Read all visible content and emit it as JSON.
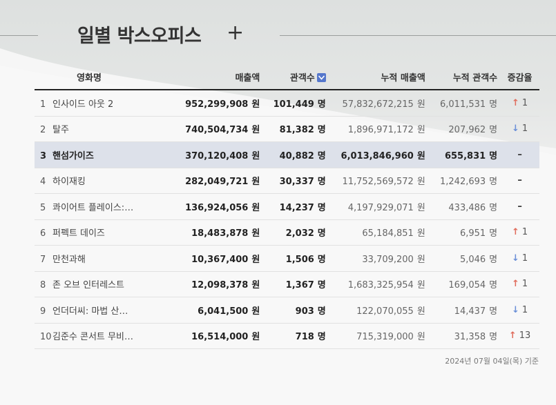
{
  "page": {
    "title": "일별 박스오피스",
    "plus_symbol": "+"
  },
  "columns": {
    "title": "영화명",
    "sales": "매출액",
    "audience": "관객수",
    "cum_sales": "누적 매출액",
    "cum_audience": "누적 관객수",
    "change": "증감율"
  },
  "units": {
    "won": "원",
    "people": "명"
  },
  "rows": [
    {
      "rank": "1",
      "title": "인사이드 아웃 2",
      "sales": "952,299,908",
      "audience": "101,449",
      "cum_sales": "57,832,672,215",
      "cum_audience": "6,011,531",
      "change_dir": "up",
      "change": "1"
    },
    {
      "rank": "2",
      "title": "탈주",
      "sales": "740,504,734",
      "audience": "81,382",
      "cum_sales": "1,896,971,172",
      "cum_audience": "207,962",
      "change_dir": "down",
      "change": "1"
    },
    {
      "rank": "3",
      "title": "핸섬가이즈",
      "sales": "370,120,408",
      "audience": "40,882",
      "cum_sales": "6,013,846,960",
      "cum_audience": "655,831",
      "change_dir": "none",
      "change": "–",
      "highlight": true
    },
    {
      "rank": "4",
      "title": "하이재킹",
      "sales": "282,049,721",
      "audience": "30,337",
      "cum_sales": "11,752,569,572",
      "cum_audience": "1,242,693",
      "change_dir": "none",
      "change": "–"
    },
    {
      "rank": "5",
      "title": "콰이어트 플레이스:…",
      "sales": "136,924,056",
      "audience": "14,237",
      "cum_sales": "4,197,929,071",
      "cum_audience": "433,486",
      "change_dir": "none",
      "change": "–"
    },
    {
      "rank": "6",
      "title": "퍼펙트 데이즈",
      "sales": "18,483,878",
      "audience": "2,032",
      "cum_sales": "65,184,851",
      "cum_audience": "6,951",
      "change_dir": "up",
      "change": "1"
    },
    {
      "rank": "7",
      "title": "만천과해",
      "sales": "10,367,400",
      "audience": "1,506",
      "cum_sales": "33,709,200",
      "cum_audience": "5,046",
      "change_dir": "down",
      "change": "1"
    },
    {
      "rank": "8",
      "title": "존 오브 인터레스트",
      "sales": "12,098,378",
      "audience": "1,367",
      "cum_sales": "1,683,325,954",
      "cum_audience": "169,054",
      "change_dir": "up",
      "change": "1"
    },
    {
      "rank": "9",
      "title": "언더더씨: 마법 산…",
      "sales": "6,041,500",
      "audience": "903",
      "cum_sales": "122,070,055",
      "cum_audience": "14,437",
      "change_dir": "down",
      "change": "1"
    },
    {
      "rank": "10",
      "title": "김준수 콘서트 무비…",
      "sales": "16,514,000",
      "audience": "718",
      "cum_sales": "715,319,000",
      "cum_audience": "31,358",
      "change_dir": "up",
      "change": "13"
    }
  ],
  "footnote": "2024년 07월 04일(목) 기준",
  "colors": {
    "up": "#e06b5b",
    "down": "#6a8fd8",
    "highlight_row": "#dde1ea",
    "sort_icon": "#5577cc"
  },
  "icons": {
    "plus": "plus-icon",
    "sort": "sort-down-icon",
    "up": "arrow-up-icon",
    "down": "arrow-down-icon"
  }
}
